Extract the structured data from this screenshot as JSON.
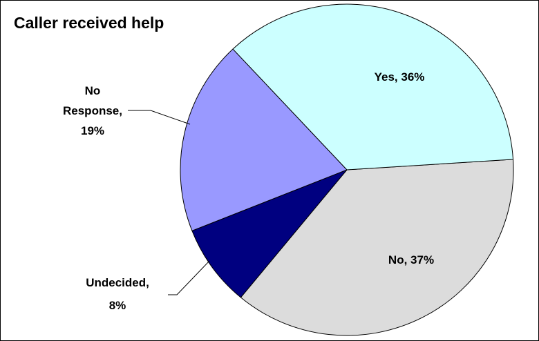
{
  "chart_data": {
    "type": "pie",
    "title": "Caller received help",
    "slices": [
      {
        "name": "Yes",
        "value": 36,
        "label": "Yes, 36%",
        "color": "#ccffff"
      },
      {
        "name": "No",
        "value": 37,
        "label": "No, 37%",
        "color": "#dcdcdc"
      },
      {
        "name": "Undecided",
        "value": 8,
        "label_lines": [
          "Undecided,",
          "8%"
        ],
        "color": "#000080"
      },
      {
        "name": "No Response",
        "value": 19,
        "label_lines": [
          "No",
          "Response,",
          "19%"
        ],
        "color": "#9999ff"
      }
    ],
    "legend": "none"
  }
}
